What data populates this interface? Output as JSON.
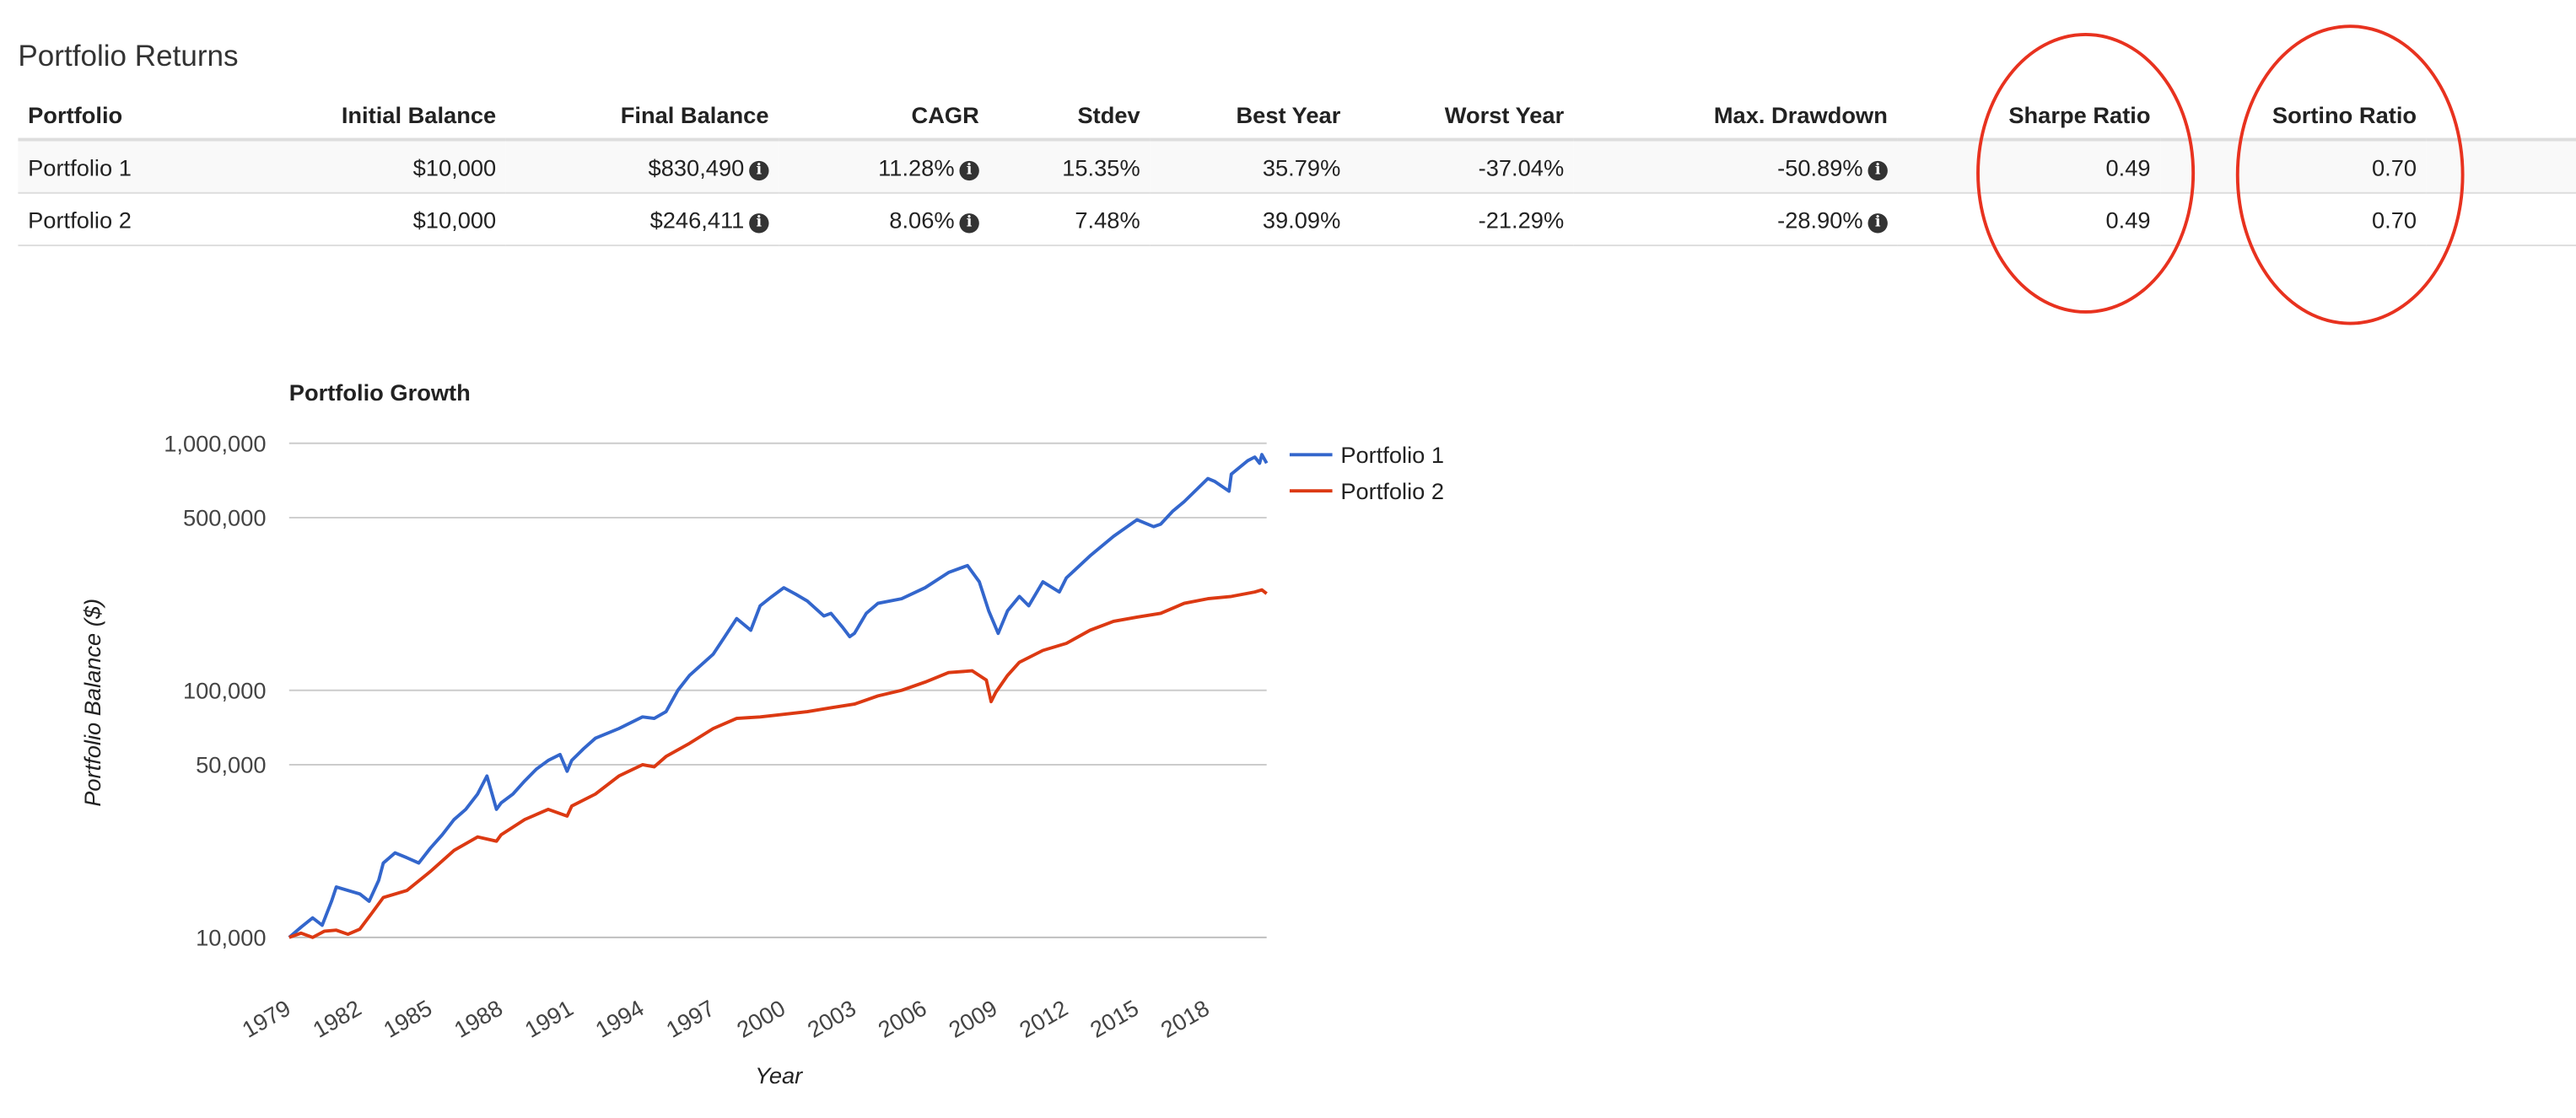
{
  "page": {
    "title": "Portfolio Returns"
  },
  "table": {
    "columns": [
      "Portfolio",
      "Initial Balance",
      "Final Balance",
      "CAGR",
      "Stdev",
      "Best Year",
      "Worst Year",
      "Max. Drawdown",
      "Sharpe Ratio",
      "Sortino Ratio"
    ],
    "rows": [
      {
        "portfolio": "Portfolio 1",
        "initial_balance": "$10,000",
        "final_balance": "$830,490",
        "cagr": "11.28%",
        "stdev": "15.35%",
        "best_year": "35.79%",
        "worst_year": "-37.04%",
        "max_drawdown": "-50.89%",
        "sharpe_ratio": "0.49",
        "sortino_ratio": "0.70"
      },
      {
        "portfolio": "Portfolio 2",
        "initial_balance": "$10,000",
        "final_balance": "$246,411",
        "cagr": "8.06%",
        "stdev": "7.48%",
        "best_year": "39.09%",
        "worst_year": "-21.29%",
        "max_drawdown": "-28.90%",
        "sharpe_ratio": "0.49",
        "sortino_ratio": "0.70"
      }
    ],
    "info_icon": "info-circle-icon"
  },
  "highlights": {
    "color": "#e8321f",
    "columns": [
      "Sharpe Ratio",
      "Sortino Ratio"
    ]
  },
  "chart_data": {
    "type": "line",
    "title": "Portfolio Growth",
    "xlabel": "Year",
    "ylabel": "Portfolio Balance ($)",
    "yscale": "log",
    "ylim": [
      10000,
      1000000
    ],
    "xlim": [
      1979,
      2020.5
    ],
    "yticks": [
      10000,
      50000,
      100000,
      500000,
      1000000
    ],
    "ytick_labels": [
      "10,000",
      "50,000",
      "100,000",
      "500,000",
      "1,000,000"
    ],
    "xticks": [
      1979,
      1982,
      1985,
      1988,
      1991,
      1994,
      1997,
      2000,
      2003,
      2006,
      2009,
      2012,
      2015,
      2018
    ],
    "xtick_labels": [
      "1979",
      "1982",
      "1985",
      "1988",
      "1991",
      "1994",
      "1997",
      "2000",
      "2003",
      "2006",
      "2009",
      "2012",
      "2015",
      "2018"
    ],
    "grid": true,
    "legend": "right",
    "series": [
      {
        "name": "Portfolio 1",
        "color": "#3366cc",
        "points": [
          [
            1979.0,
            10000
          ],
          [
            1979.5,
            11000
          ],
          [
            1980.0,
            12000
          ],
          [
            1980.4,
            11200
          ],
          [
            1980.8,
            14000
          ],
          [
            1981.0,
            16000
          ],
          [
            1981.5,
            15500
          ],
          [
            1982.0,
            15000
          ],
          [
            1982.4,
            14000
          ],
          [
            1982.8,
            17000
          ],
          [
            1983.0,
            20000
          ],
          [
            1983.5,
            22000
          ],
          [
            1984.0,
            21000
          ],
          [
            1984.5,
            20000
          ],
          [
            1985.0,
            23000
          ],
          [
            1985.5,
            26000
          ],
          [
            1986.0,
            30000
          ],
          [
            1986.5,
            33000
          ],
          [
            1987.0,
            38000
          ],
          [
            1987.4,
            45000
          ],
          [
            1987.8,
            33000
          ],
          [
            1988.0,
            35000
          ],
          [
            1988.5,
            38000
          ],
          [
            1989.0,
            43000
          ],
          [
            1989.5,
            48000
          ],
          [
            1990.0,
            52000
          ],
          [
            1990.5,
            55000
          ],
          [
            1990.8,
            47000
          ],
          [
            1991.0,
            52000
          ],
          [
            1991.5,
            58000
          ],
          [
            1992.0,
            64000
          ],
          [
            1993.0,
            70000
          ],
          [
            1994.0,
            78000
          ],
          [
            1994.5,
            77000
          ],
          [
            1995.0,
            82000
          ],
          [
            1995.5,
            100000
          ],
          [
            1996.0,
            115000
          ],
          [
            1997.0,
            140000
          ],
          [
            1997.5,
            165000
          ],
          [
            1998.0,
            195000
          ],
          [
            1998.6,
            175000
          ],
          [
            1999.0,
            220000
          ],
          [
            1999.5,
            240000
          ],
          [
            2000.0,
            260000
          ],
          [
            2000.5,
            245000
          ],
          [
            2001.0,
            230000
          ],
          [
            2001.7,
            200000
          ],
          [
            2002.0,
            205000
          ],
          [
            2002.5,
            180000
          ],
          [
            2002.8,
            165000
          ],
          [
            2003.0,
            170000
          ],
          [
            2003.5,
            205000
          ],
          [
            2004.0,
            225000
          ],
          [
            2005.0,
            235000
          ],
          [
            2006.0,
            260000
          ],
          [
            2007.0,
            300000
          ],
          [
            2007.8,
            320000
          ],
          [
            2008.3,
            275000
          ],
          [
            2008.7,
            210000
          ],
          [
            2009.1,
            170000
          ],
          [
            2009.5,
            210000
          ],
          [
            2010.0,
            240000
          ],
          [
            2010.4,
            220000
          ],
          [
            2011.0,
            275000
          ],
          [
            2011.7,
            250000
          ],
          [
            2012.0,
            285000
          ],
          [
            2013.0,
            350000
          ],
          [
            2014.0,
            420000
          ],
          [
            2015.0,
            490000
          ],
          [
            2015.7,
            460000
          ],
          [
            2016.0,
            470000
          ],
          [
            2016.5,
            530000
          ],
          [
            2017.0,
            580000
          ],
          [
            2018.0,
            720000
          ],
          [
            2018.3,
            700000
          ],
          [
            2018.9,
            640000
          ],
          [
            2019.0,
            750000
          ],
          [
            2019.7,
            850000
          ],
          [
            2020.0,
            880000
          ],
          [
            2020.2,
            830000
          ],
          [
            2020.3,
            900000
          ],
          [
            2020.5,
            830490
          ]
        ]
      },
      {
        "name": "Portfolio 2",
        "color": "#dc3912",
        "points": [
          [
            1979.0,
            10000
          ],
          [
            1979.5,
            10400
          ],
          [
            1980.0,
            10000
          ],
          [
            1980.5,
            10600
          ],
          [
            1981.0,
            10700
          ],
          [
            1981.5,
            10300
          ],
          [
            1982.0,
            10800
          ],
          [
            1982.5,
            12500
          ],
          [
            1983.0,
            14500
          ],
          [
            1984.0,
            15500
          ],
          [
            1985.0,
            18500
          ],
          [
            1986.0,
            22500
          ],
          [
            1987.0,
            25500
          ],
          [
            1987.8,
            24500
          ],
          [
            1988.0,
            26000
          ],
          [
            1989.0,
            30000
          ],
          [
            1990.0,
            33000
          ],
          [
            1990.8,
            31000
          ],
          [
            1991.0,
            34000
          ],
          [
            1992.0,
            38000
          ],
          [
            1993.0,
            45000
          ],
          [
            1994.0,
            50000
          ],
          [
            1994.5,
            49000
          ],
          [
            1995.0,
            54000
          ],
          [
            1996.0,
            61000
          ],
          [
            1997.0,
            70000
          ],
          [
            1998.0,
            77000
          ],
          [
            1999.0,
            78000
          ],
          [
            2000.0,
            80000
          ],
          [
            2001.0,
            82000
          ],
          [
            2002.0,
            85000
          ],
          [
            2003.0,
            88000
          ],
          [
            2004.0,
            95000
          ],
          [
            2005.0,
            100000
          ],
          [
            2006.0,
            108000
          ],
          [
            2007.0,
            118000
          ],
          [
            2008.0,
            120000
          ],
          [
            2008.6,
            110000
          ],
          [
            2008.8,
            90000
          ],
          [
            2009.0,
            98000
          ],
          [
            2009.5,
            115000
          ],
          [
            2010.0,
            130000
          ],
          [
            2011.0,
            145000
          ],
          [
            2012.0,
            155000
          ],
          [
            2013.0,
            175000
          ],
          [
            2014.0,
            190000
          ],
          [
            2015.0,
            198000
          ],
          [
            2016.0,
            205000
          ],
          [
            2017.0,
            225000
          ],
          [
            2018.0,
            235000
          ],
          [
            2019.0,
            240000
          ],
          [
            2020.0,
            250000
          ],
          [
            2020.3,
            255000
          ],
          [
            2020.5,
            246411
          ]
        ]
      }
    ]
  }
}
